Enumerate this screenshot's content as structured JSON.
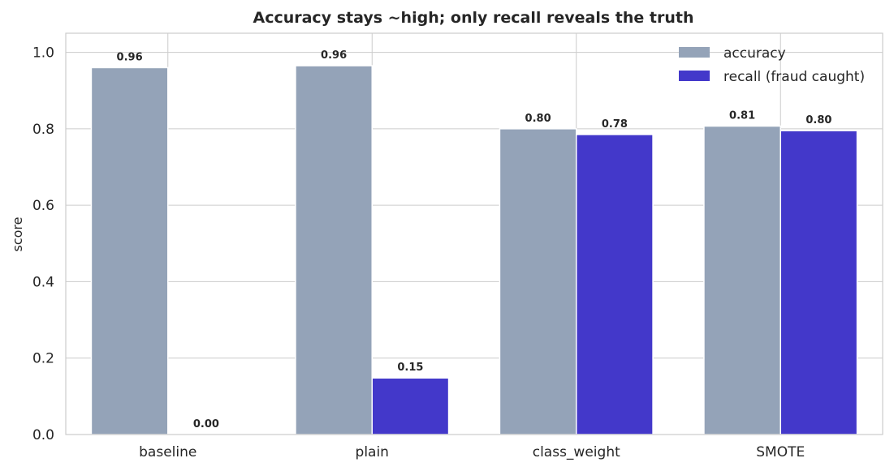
{
  "chart_data": {
    "type": "bar",
    "title": "Accuracy stays ~high; only recall reveals the truth",
    "xlabel": "",
    "ylabel": "score",
    "ylim": [
      0,
      1.05
    ],
    "yticks": [
      "0.0",
      "0.2",
      "0.4",
      "0.6",
      "0.8",
      "1.0"
    ],
    "ytick_values": [
      0,
      0.2,
      0.4,
      0.6,
      0.8,
      1.0
    ],
    "grid": true,
    "legend_position": "top-right",
    "categories": [
      "baseline",
      "plain",
      "class_weight",
      "SMOTE"
    ],
    "series": [
      {
        "name": "accuracy",
        "color": "#94a3b8",
        "values": [
          0.96,
          0.965,
          0.8,
          0.807
        ],
        "labels": [
          "0.96",
          "0.96",
          "0.80",
          "0.81"
        ]
      },
      {
        "name": "recall (fraud caught)",
        "color": "#4338ca",
        "values": [
          0.0,
          0.148,
          0.785,
          0.795
        ],
        "labels": [
          "0.00",
          "0.15",
          "0.78",
          "0.80"
        ]
      }
    ]
  }
}
